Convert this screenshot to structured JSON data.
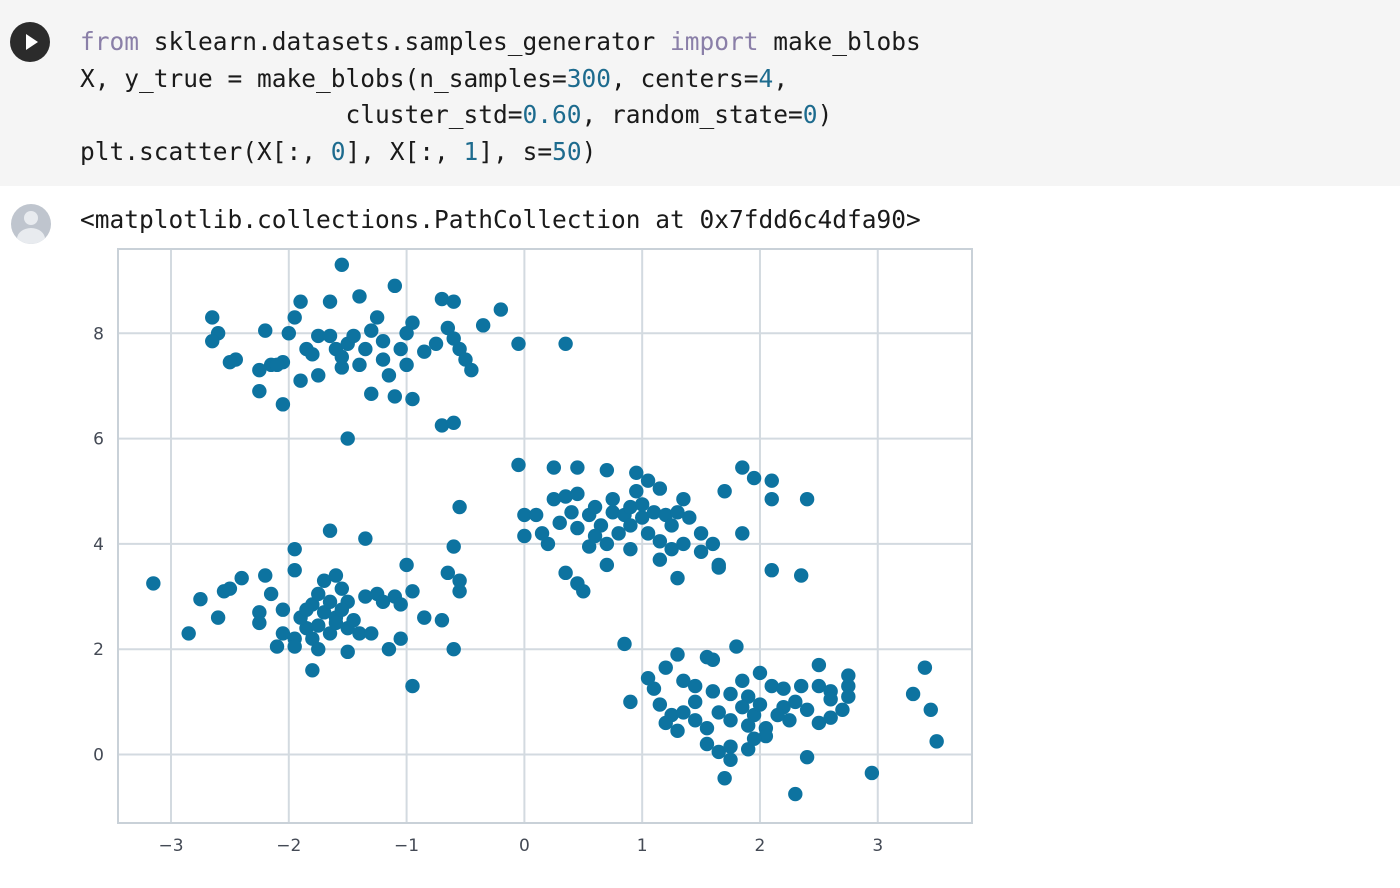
{
  "code_cell": {
    "run_button_icon": "play-icon",
    "tokens": {
      "line1": {
        "kw_from": "from",
        "module": " sklearn.datasets.samples_generator ",
        "kw_import": "import",
        "name": " make_blobs"
      },
      "line2": {
        "pre": "X, y_true = make_blobs(n_samples=",
        "n_samples": "300",
        "mid": ", centers=",
        "centers": "4",
        "post": ","
      },
      "line3": {
        "pre": "                  cluster_std=",
        "cluster_std": "0.60",
        "mid": ", random_state=",
        "random_state": "0",
        "post": ")"
      },
      "line4": {
        "pre": "plt.scatter(X[:, ",
        "i0": "0",
        "mid1": "], X[:, ",
        "i1": "1",
        "mid2": "], s=",
        "s": "50",
        "post": ")"
      }
    }
  },
  "output": {
    "avatar_icon": "user-avatar-icon",
    "text": "<matplotlib.collections.PathCollection at 0x7fdd6c4dfa90>"
  },
  "chart_data": {
    "type": "scatter",
    "xlim": [
      -3.45,
      3.8
    ],
    "ylim": [
      -1.3,
      9.6
    ],
    "xticks": [
      -3,
      -2,
      -1,
      0,
      1,
      2,
      3
    ],
    "yticks": [
      0,
      2,
      4,
      6,
      8
    ],
    "xtick_labels": [
      "−3",
      "−2",
      "−1",
      "0",
      "1",
      "2",
      "3"
    ],
    "ytick_labels": [
      "0",
      "2",
      "4",
      "6",
      "8"
    ],
    "grid": true,
    "point_color": "#0d73a0",
    "points": [
      [
        -1.55,
        9.3
      ],
      [
        -1.9,
        8.6
      ],
      [
        -1.4,
        8.7
      ],
      [
        -1.1,
        8.9
      ],
      [
        -0.7,
        8.65
      ],
      [
        -0.6,
        8.6
      ],
      [
        -0.2,
        8.45
      ],
      [
        -0.35,
        8.15
      ],
      [
        -0.65,
        8.1
      ],
      [
        -0.95,
        8.2
      ],
      [
        -1.25,
        8.3
      ],
      [
        -1.65,
        8.6
      ],
      [
        -2.65,
        8.3
      ],
      [
        -2.6,
        8.0
      ],
      [
        -2.65,
        7.85
      ],
      [
        -2.2,
        8.05
      ],
      [
        -1.75,
        7.95
      ],
      [
        -1.85,
        7.7
      ],
      [
        -2.05,
        7.45
      ],
      [
        -2.15,
        7.4
      ],
      [
        -1.6,
        7.7
      ],
      [
        -1.5,
        7.8
      ],
      [
        -1.35,
        7.7
      ],
      [
        -1.2,
        7.85
      ],
      [
        -1.05,
        7.7
      ],
      [
        -0.85,
        7.65
      ],
      [
        -0.75,
        7.8
      ],
      [
        -0.55,
        7.7
      ],
      [
        -0.5,
        7.5
      ],
      [
        -0.45,
        7.3
      ],
      [
        -1.0,
        7.4
      ],
      [
        -1.2,
        7.5
      ],
      [
        -1.4,
        7.4
      ],
      [
        -1.55,
        7.35
      ],
      [
        -1.75,
        7.2
      ],
      [
        -1.9,
        7.1
      ],
      [
        -2.1,
        7.4
      ],
      [
        -2.25,
        7.3
      ],
      [
        -2.45,
        7.5
      ],
      [
        -2.5,
        7.45
      ],
      [
        -2.25,
        6.9
      ],
      [
        -2.05,
        6.65
      ],
      [
        -1.3,
        6.85
      ],
      [
        -1.1,
        6.8
      ],
      [
        -0.95,
        6.75
      ],
      [
        -0.7,
        6.25
      ],
      [
        -0.6,
        6.3
      ],
      [
        -1.5,
        6.0
      ],
      [
        -0.05,
        7.8
      ],
      [
        0.35,
        7.8
      ],
      [
        -1.8,
        7.6
      ],
      [
        -1.65,
        7.95
      ],
      [
        -1.45,
        7.95
      ],
      [
        -1.0,
        8.0
      ],
      [
        -1.3,
        8.05
      ],
      [
        -2.0,
        8.0
      ],
      [
        -1.55,
        7.55
      ],
      [
        -1.15,
        7.2
      ],
      [
        -0.6,
        7.9
      ],
      [
        -1.95,
        8.3
      ],
      [
        -0.05,
        5.5
      ],
      [
        0.25,
        5.45
      ],
      [
        0.45,
        5.45
      ],
      [
        0.7,
        5.4
      ],
      [
        0.95,
        5.35
      ],
      [
        1.05,
        5.2
      ],
      [
        1.15,
        5.05
      ],
      [
        1.35,
        4.85
      ],
      [
        1.7,
        5.0
      ],
      [
        1.85,
        5.45
      ],
      [
        1.95,
        5.25
      ],
      [
        2.1,
        5.2
      ],
      [
        2.1,
        4.85
      ],
      [
        2.4,
        4.85
      ],
      [
        0.0,
        4.55
      ],
      [
        0.1,
        4.55
      ],
      [
        0.25,
        4.85
      ],
      [
        0.35,
        4.9
      ],
      [
        0.45,
        4.95
      ],
      [
        0.55,
        4.55
      ],
      [
        0.6,
        4.7
      ],
      [
        0.65,
        4.35
      ],
      [
        0.75,
        4.6
      ],
      [
        0.85,
        4.55
      ],
      [
        0.9,
        4.7
      ],
      [
        1.0,
        4.5
      ],
      [
        1.1,
        4.6
      ],
      [
        1.2,
        4.55
      ],
      [
        1.25,
        4.35
      ],
      [
        1.4,
        4.5
      ],
      [
        1.5,
        4.2
      ],
      [
        1.6,
        4.0
      ],
      [
        1.85,
        4.2
      ],
      [
        0.0,
        4.15
      ],
      [
        0.2,
        4.0
      ],
      [
        0.45,
        4.3
      ],
      [
        0.55,
        3.95
      ],
      [
        0.6,
        4.15
      ],
      [
        0.7,
        4.0
      ],
      [
        0.8,
        4.2
      ],
      [
        0.9,
        3.9
      ],
      [
        1.05,
        4.2
      ],
      [
        1.15,
        4.05
      ],
      [
        1.25,
        3.9
      ],
      [
        1.35,
        4.0
      ],
      [
        1.5,
        3.85
      ],
      [
        1.65,
        3.6
      ],
      [
        2.1,
        3.5
      ],
      [
        2.35,
        3.4
      ],
      [
        0.35,
        3.45
      ],
      [
        0.45,
        3.25
      ],
      [
        0.5,
        3.1
      ],
      [
        0.7,
        3.6
      ],
      [
        1.3,
        3.35
      ],
      [
        1.15,
        3.7
      ],
      [
        0.3,
        4.4
      ],
      [
        0.4,
        4.6
      ],
      [
        0.95,
        5.0
      ],
      [
        1.0,
        4.75
      ],
      [
        1.3,
        4.6
      ],
      [
        0.9,
        4.35
      ],
      [
        0.75,
        4.85
      ],
      [
        0.15,
        4.2
      ],
      [
        1.65,
        3.55
      ],
      [
        -3.15,
        3.25
      ],
      [
        -2.85,
        2.3
      ],
      [
        -2.75,
        2.95
      ],
      [
        -2.6,
        2.6
      ],
      [
        -2.55,
        3.1
      ],
      [
        -2.5,
        3.15
      ],
      [
        -2.4,
        3.35
      ],
      [
        -2.2,
        3.4
      ],
      [
        -2.25,
        2.7
      ],
      [
        -2.25,
        2.5
      ],
      [
        -2.1,
        2.05
      ],
      [
        -2.15,
        3.05
      ],
      [
        -2.05,
        2.75
      ],
      [
        -1.95,
        2.2
      ],
      [
        -1.95,
        3.9
      ],
      [
        -1.95,
        3.5
      ],
      [
        -1.85,
        2.4
      ],
      [
        -1.8,
        2.2
      ],
      [
        -1.75,
        2.0
      ],
      [
        -1.8,
        2.85
      ],
      [
        -1.75,
        3.05
      ],
      [
        -1.7,
        2.7
      ],
      [
        -1.7,
        3.3
      ],
      [
        -1.6,
        3.4
      ],
      [
        -1.55,
        3.15
      ],
      [
        -1.5,
        2.9
      ],
      [
        -1.6,
        2.6
      ],
      [
        -1.5,
        2.4
      ],
      [
        -1.65,
        2.3
      ],
      [
        -1.4,
        2.3
      ],
      [
        -1.35,
        3.0
      ],
      [
        -1.25,
        3.05
      ],
      [
        -1.2,
        2.9
      ],
      [
        -1.1,
        3.0
      ],
      [
        -1.05,
        2.85
      ],
      [
        -0.95,
        3.1
      ],
      [
        -1.0,
        3.6
      ],
      [
        -0.85,
        2.6
      ],
      [
        -0.7,
        2.55
      ],
      [
        -0.6,
        2.0
      ],
      [
        -0.55,
        3.1
      ],
      [
        -0.55,
        3.3
      ],
      [
        -0.65,
        3.45
      ],
      [
        -0.6,
        3.95
      ],
      [
        -1.5,
        1.95
      ],
      [
        -1.8,
        1.6
      ],
      [
        -0.95,
        1.3
      ],
      [
        -1.3,
        2.3
      ],
      [
        -1.95,
        2.05
      ],
      [
        -1.9,
        2.6
      ],
      [
        -1.75,
        2.45
      ],
      [
        -1.65,
        2.9
      ],
      [
        -1.55,
        2.75
      ],
      [
        -1.45,
        2.55
      ],
      [
        -1.05,
        2.2
      ],
      [
        -1.15,
        2.0
      ],
      [
        -1.65,
        4.25
      ],
      [
        -1.35,
        4.1
      ],
      [
        -0.55,
        4.7
      ],
      [
        -2.05,
        2.3
      ],
      [
        -1.85,
        2.75
      ],
      [
        -1.6,
        2.5
      ],
      [
        0.85,
        2.1
      ],
      [
        1.3,
        1.9
      ],
      [
        1.55,
        1.85
      ],
      [
        1.6,
        1.8
      ],
      [
        1.8,
        2.05
      ],
      [
        1.2,
        1.65
      ],
      [
        1.35,
        1.4
      ],
      [
        1.45,
        1.3
      ],
      [
        1.6,
        1.2
      ],
      [
        1.75,
        1.15
      ],
      [
        1.9,
        1.1
      ],
      [
        2.0,
        1.55
      ],
      [
        2.1,
        1.3
      ],
      [
        2.2,
        1.25
      ],
      [
        2.35,
        1.3
      ],
      [
        2.5,
        1.7
      ],
      [
        2.5,
        1.3
      ],
      [
        2.6,
        1.2
      ],
      [
        2.75,
        1.3
      ],
      [
        2.75,
        1.5
      ],
      [
        2.75,
        1.1
      ],
      [
        1.1,
        1.25
      ],
      [
        1.15,
        0.95
      ],
      [
        1.25,
        0.75
      ],
      [
        1.35,
        0.8
      ],
      [
        1.45,
        0.65
      ],
      [
        1.55,
        0.5
      ],
      [
        1.65,
        0.8
      ],
      [
        1.75,
        0.65
      ],
      [
        1.85,
        0.9
      ],
      [
        1.95,
        0.75
      ],
      [
        2.05,
        0.5
      ],
      [
        2.2,
        0.9
      ],
      [
        2.3,
        1.0
      ],
      [
        2.4,
        0.85
      ],
      [
        2.5,
        0.6
      ],
      [
        2.6,
        0.7
      ],
      [
        2.7,
        0.85
      ],
      [
        0.9,
        1.0
      ],
      [
        1.2,
        0.6
      ],
      [
        1.3,
        0.45
      ],
      [
        1.55,
        0.2
      ],
      [
        1.65,
        0.05
      ],
      [
        1.75,
        0.15
      ],
      [
        1.9,
        0.1
      ],
      [
        2.05,
        0.35
      ],
      [
        1.75,
        -0.1
      ],
      [
        2.25,
        0.65
      ],
      [
        2.4,
        -0.05
      ],
      [
        1.7,
        -0.45
      ],
      [
        2.3,
        -0.75
      ],
      [
        2.95,
        -0.35
      ],
      [
        3.3,
        1.15
      ],
      [
        3.4,
        1.65
      ],
      [
        3.45,
        0.85
      ],
      [
        3.5,
        0.25
      ],
      [
        1.9,
        0.55
      ],
      [
        2.0,
        0.95
      ],
      [
        2.15,
        0.75
      ],
      [
        1.45,
        1.0
      ],
      [
        1.85,
        1.4
      ],
      [
        1.05,
        1.45
      ],
      [
        2.6,
        1.05
      ],
      [
        1.95,
        0.3
      ]
    ]
  }
}
